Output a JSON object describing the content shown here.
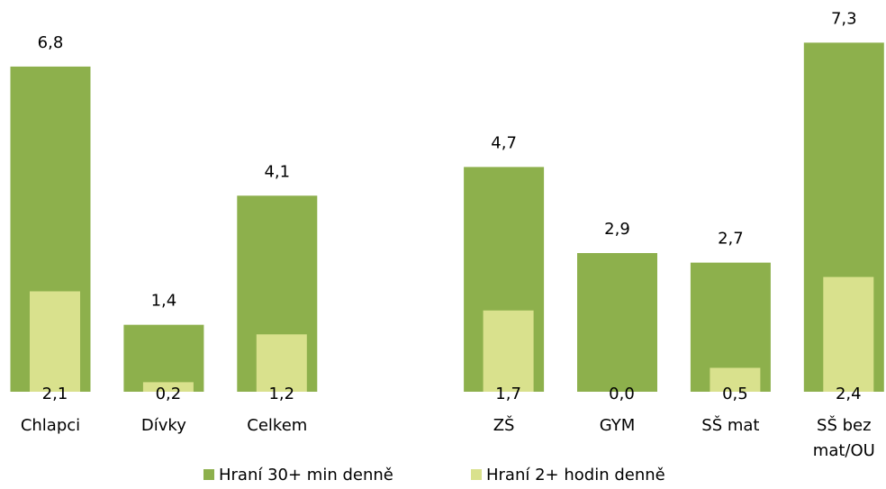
{
  "chart_data": {
    "type": "bar",
    "categories": [
      "Chlapci",
      "Dívky",
      "Celkem",
      null,
      "ZŠ",
      "GYM",
      "SŠ mat",
      "SŠ bez mat/OU"
    ],
    "series": [
      {
        "name": "Hraní 30+ min denně",
        "color": "#8db04c",
        "values": [
          6.8,
          1.4,
          4.1,
          null,
          4.7,
          2.9,
          2.7,
          7.3
        ],
        "value_labels": [
          "6,8",
          "1,4",
          "4,1",
          null,
          "4,7",
          "2,9",
          "2,7",
          "7,3"
        ]
      },
      {
        "name": "Hraní 2+ hodin denně",
        "color": "#d9e18d",
        "values": [
          2.1,
          0.2,
          1.2,
          null,
          1.7,
          0.0,
          0.5,
          2.4
        ],
        "value_labels": [
          "2,1",
          "0,2",
          "1,2",
          null,
          "1,7",
          "0,0",
          "0,5",
          "2,4"
        ]
      }
    ],
    "legend": "bottom"
  }
}
